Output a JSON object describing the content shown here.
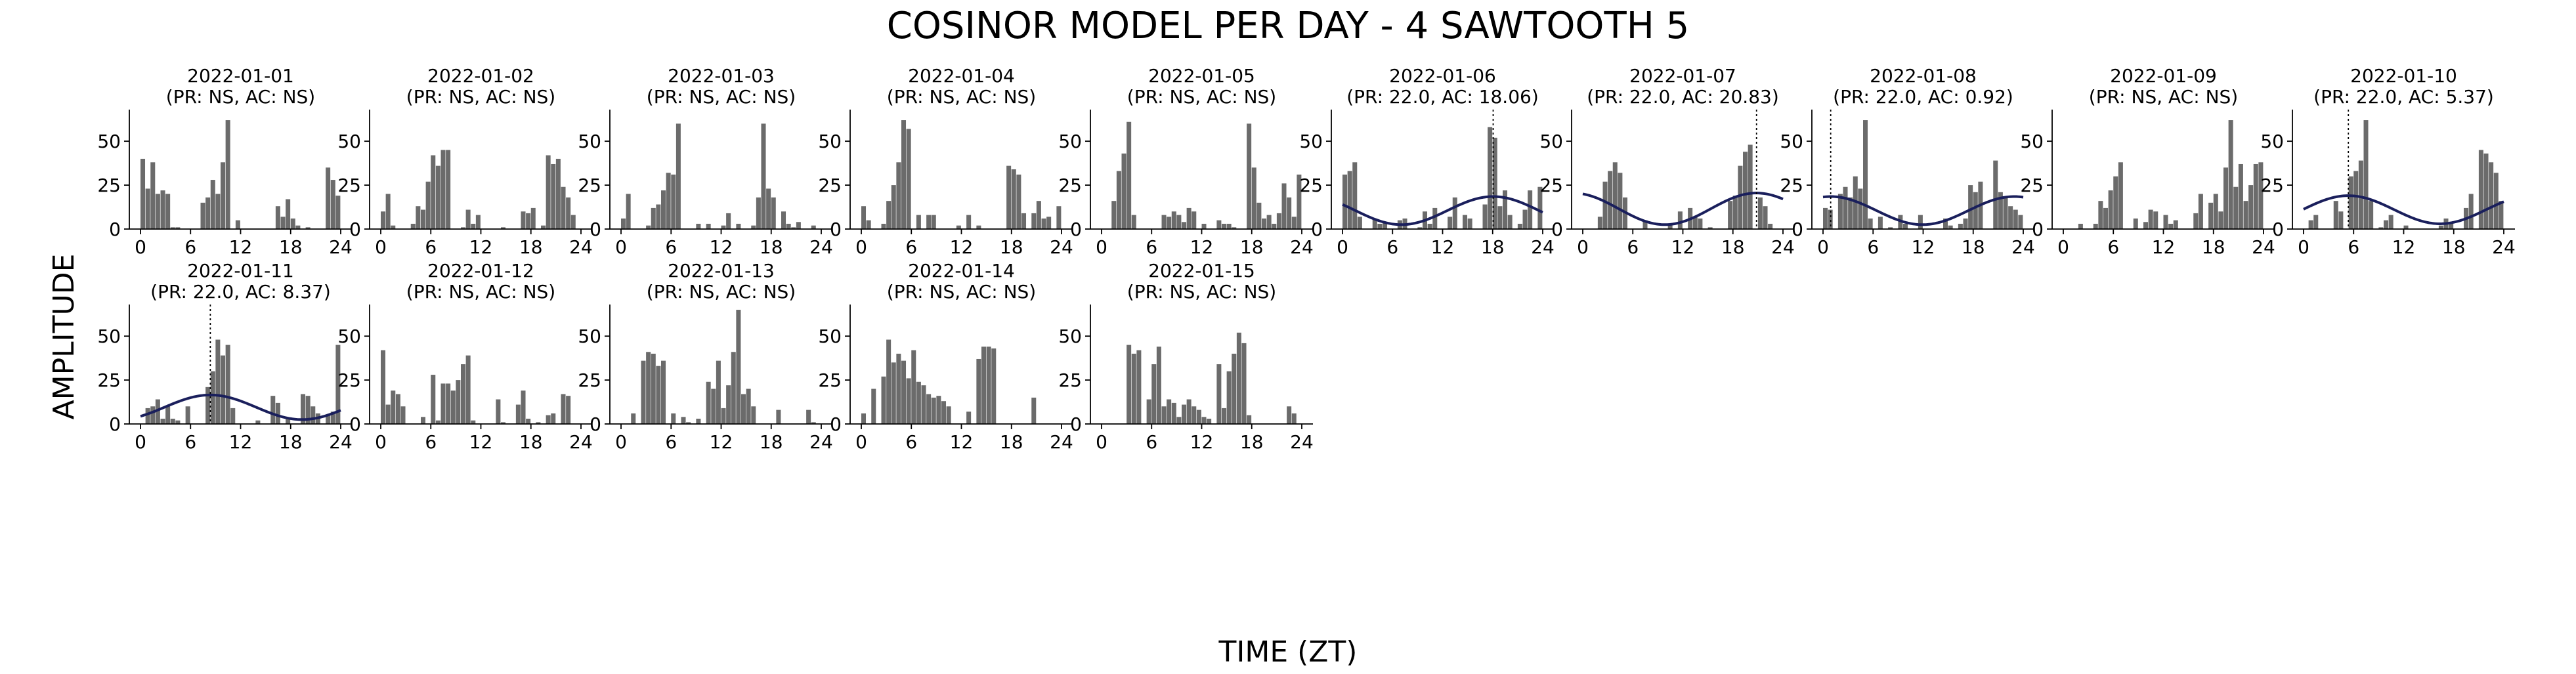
{
  "figure": {
    "title": "COSINOR MODEL PER DAY - 4 SAWTOOTH 5",
    "xlabel": "TIME (ZT)",
    "ylabel": "AMPLITUDE",
    "colors": {
      "bar": "#6b6b6b",
      "fit": "#1a1f5c",
      "axis": "#000000"
    }
  },
  "chart_data": [
    {
      "type": "bar",
      "title": "2022-01-01",
      "subtitle": "(PR: NS, AC: NS)",
      "xlim": [
        0,
        24
      ],
      "ylim": [
        0,
        68
      ],
      "xticks": [
        0,
        6,
        12,
        18,
        24
      ],
      "yticks": [
        0,
        25,
        50
      ],
      "values": [
        40,
        23,
        38,
        20,
        22,
        20,
        1,
        1,
        0,
        0,
        0,
        0,
        15,
        18,
        28,
        20,
        38,
        62,
        0,
        5,
        0,
        0,
        0,
        0,
        0,
        0,
        0,
        13,
        7,
        17,
        6,
        2,
        0,
        1,
        0,
        0,
        0,
        35,
        28,
        19
      ]
    },
    {
      "type": "bar",
      "title": "2022-01-02",
      "subtitle": "(PR: NS, AC: NS)",
      "xlim": [
        0,
        24
      ],
      "ylim": [
        0,
        68
      ],
      "xticks": [
        0,
        6,
        12,
        18,
        24
      ],
      "yticks": [
        0,
        25,
        50
      ],
      "values": [
        10,
        20,
        2,
        0,
        0,
        0,
        3,
        13,
        11,
        27,
        42,
        36,
        45,
        45,
        0,
        0,
        1,
        11,
        3,
        8,
        0,
        0,
        0,
        0,
        1,
        0,
        0,
        0,
        10,
        9,
        12,
        0,
        2,
        42,
        37,
        40,
        24,
        18,
        8,
        0
      ]
    },
    {
      "type": "bar",
      "title": "2022-01-03",
      "subtitle": "(PR: NS, AC: NS)",
      "xlim": [
        0,
        24
      ],
      "ylim": [
        0,
        68
      ],
      "xticks": [
        0,
        6,
        12,
        18,
        24
      ],
      "yticks": [
        0,
        25,
        50
      ],
      "values": [
        6,
        20,
        0,
        0,
        0,
        2,
        12,
        14,
        22,
        32,
        31,
        60,
        0,
        0,
        0,
        3,
        0,
        3,
        0,
        0,
        2,
        9,
        0,
        3,
        0,
        0,
        2,
        18,
        60,
        23,
        18,
        0,
        10,
        3,
        1,
        4,
        0,
        0,
        2,
        0
      ]
    },
    {
      "type": "bar",
      "title": "2022-01-04",
      "subtitle": "(PR: NS, AC: NS)",
      "xlim": [
        0,
        24
      ],
      "ylim": [
        0,
        68
      ],
      "xticks": [
        0,
        6,
        12,
        18,
        24
      ],
      "yticks": [
        0,
        25,
        50
      ],
      "values": [
        13,
        5,
        0,
        0,
        3,
        16,
        25,
        38,
        62,
        57,
        0,
        8,
        0,
        8,
        8,
        0,
        0,
        0,
        0,
        2,
        0,
        8,
        0,
        2,
        0,
        0,
        0,
        0,
        0,
        36,
        34,
        31,
        9,
        0,
        9,
        16,
        6,
        7,
        0,
        13
      ]
    },
    {
      "type": "bar",
      "title": "2022-01-05",
      "subtitle": "(PR: NS, AC: NS)",
      "xlim": [
        0,
        24
      ],
      "ylim": [
        0,
        68
      ],
      "xticks": [
        0,
        6,
        12,
        18,
        24
      ],
      "yticks": [
        0,
        25,
        50
      ],
      "values": [
        0,
        0,
        16,
        33,
        43,
        61,
        8,
        0,
        0,
        0,
        0,
        0,
        8,
        7,
        10,
        8,
        4,
        12,
        10,
        0,
        3,
        0,
        0,
        5,
        3,
        3,
        1,
        0,
        0,
        60,
        35,
        15,
        6,
        8,
        3,
        9,
        26,
        18,
        7,
        31
      ]
    },
    {
      "type": "bar",
      "title": "2022-01-06",
      "subtitle": "(PR: 22.0, AC: 18.06)",
      "xlim": [
        0,
        24
      ],
      "ylim": [
        0,
        68
      ],
      "xticks": [
        0,
        6,
        12,
        18,
        24
      ],
      "yticks": [
        0,
        25,
        50
      ],
      "values": [
        31,
        33,
        38,
        7,
        0,
        0,
        6,
        3,
        4,
        0,
        0,
        5,
        6,
        0,
        0,
        1,
        10,
        3,
        12,
        0,
        0,
        7,
        18,
        0,
        8,
        6,
        0,
        0,
        14,
        58,
        52,
        13,
        22,
        8,
        0,
        3,
        11,
        22,
        0,
        24
      ],
      "fit": {
        "period": 22.0,
        "acrophase": 18.06,
        "mesor": 10.5,
        "amplitude": 8
      }
    },
    {
      "type": "bar",
      "title": "2022-01-07",
      "subtitle": "(PR: 22.0, AC: 20.83)",
      "xlim": [
        0,
        24
      ],
      "ylim": [
        0,
        68
      ],
      "xticks": [
        0,
        6,
        12,
        18,
        24
      ],
      "yticks": [
        0,
        25,
        50
      ],
      "values": [
        0,
        0,
        0,
        7,
        27,
        33,
        38,
        32,
        18,
        0,
        0,
        0,
        5,
        0,
        0,
        0,
        0,
        3,
        0,
        10,
        0,
        12,
        7,
        6,
        0,
        1,
        0,
        0,
        0,
        16,
        19,
        36,
        44,
        48,
        0,
        18,
        13,
        3,
        0,
        0
      ],
      "fit": {
        "period": 22.0,
        "acrophase": 20.83,
        "mesor": 11.5,
        "amplitude": 9
      }
    },
    {
      "type": "bar",
      "title": "2022-01-08",
      "subtitle": "(PR: 22.0, AC: 0.92)",
      "xlim": [
        0,
        24
      ],
      "ylim": [
        0,
        68
      ],
      "xticks": [
        0,
        6,
        12,
        18,
        24
      ],
      "yticks": [
        0,
        25,
        50
      ],
      "values": [
        12,
        11,
        0,
        20,
        24,
        18,
        30,
        23,
        62,
        6,
        0,
        7,
        0,
        1,
        0,
        8,
        3,
        0,
        0,
        8,
        0,
        0,
        0,
        0,
        6,
        2,
        0,
        3,
        6,
        25,
        21,
        27,
        0,
        0,
        39,
        21,
        18,
        13,
        11,
        8
      ],
      "fit": {
        "period": 22.0,
        "acrophase": 0.92,
        "mesor": 10.5,
        "amplitude": 8
      }
    },
    {
      "type": "bar",
      "title": "2022-01-09",
      "subtitle": "(PR: NS, AC: NS)",
      "xlim": [
        0,
        24
      ],
      "ylim": [
        0,
        68
      ],
      "xticks": [
        0,
        6,
        12,
        18,
        24
      ],
      "yticks": [
        0,
        25,
        50
      ],
      "values": [
        0,
        0,
        0,
        3,
        0,
        0,
        3,
        16,
        12,
        22,
        30,
        38,
        0,
        0,
        6,
        0,
        4,
        11,
        10,
        0,
        8,
        3,
        5,
        0,
        0,
        0,
        9,
        20,
        0,
        15,
        20,
        10,
        35,
        62,
        24,
        37,
        16,
        25,
        37,
        38
      ]
    },
    {
      "type": "bar",
      "title": "2022-01-10",
      "subtitle": "(PR: 22.0, AC: 5.37)",
      "xlim": [
        0,
        24
      ],
      "ylim": [
        0,
        68
      ],
      "xticks": [
        0,
        6,
        12,
        18,
        24
      ],
      "yticks": [
        0,
        25,
        50
      ],
      "values": [
        0,
        5,
        8,
        0,
        0,
        0,
        16,
        10,
        0,
        30,
        33,
        39,
        62,
        16,
        0,
        1,
        5,
        8,
        0,
        0,
        2,
        0,
        0,
        0,
        0,
        0,
        0,
        2,
        6,
        4,
        0,
        0,
        12,
        20,
        0,
        45,
        43,
        38,
        32,
        16
      ],
      "fit": {
        "period": 22.0,
        "acrophase": 5.37,
        "mesor": 11,
        "amplitude": 8
      }
    },
    {
      "type": "bar",
      "title": "2022-01-11",
      "subtitle": "(PR: 22.0, AC: 8.37)",
      "xlim": [
        0,
        24
      ],
      "ylim": [
        0,
        68
      ],
      "xticks": [
        0,
        6,
        12,
        18,
        24
      ],
      "yticks": [
        0,
        25,
        50
      ],
      "values": [
        0,
        9,
        10,
        14,
        3,
        10,
        3,
        2,
        0,
        10,
        0,
        0,
        0,
        21,
        30,
        48,
        39,
        45,
        9,
        0,
        0,
        0,
        0,
        2,
        0,
        0,
        16,
        12,
        0,
        3,
        0,
        0,
        17,
        16,
        10,
        6,
        0,
        5,
        7,
        45
      ],
      "fit": {
        "period": 22.0,
        "acrophase": 8.37,
        "mesor": 9.5,
        "amplitude": 7
      }
    },
    {
      "type": "bar",
      "title": "2022-01-12",
      "subtitle": "(PR: NS, AC: NS)",
      "xlim": [
        0,
        24
      ],
      "ylim": [
        0,
        68
      ],
      "xticks": [
        0,
        6,
        12,
        18,
        24
      ],
      "yticks": [
        0,
        25,
        50
      ],
      "values": [
        42,
        11,
        19,
        17,
        10,
        0,
        0,
        0,
        4,
        0,
        28,
        2,
        23,
        23,
        19,
        25,
        34,
        39,
        2,
        0,
        0,
        0,
        0,
        14,
        1,
        0,
        0,
        11,
        19,
        3,
        0,
        1,
        0,
        5,
        6,
        0,
        17,
        16,
        0,
        0
      ]
    },
    {
      "type": "bar",
      "title": "2022-01-13",
      "subtitle": "(PR: NS, AC: NS)",
      "xlim": [
        0,
        24
      ],
      "ylim": [
        0,
        68
      ],
      "xticks": [
        0,
        6,
        12,
        18,
        24
      ],
      "yticks": [
        0,
        25,
        50
      ],
      "values": [
        0,
        0,
        6,
        0,
        36,
        41,
        40,
        33,
        36,
        0,
        6,
        0,
        4,
        1,
        0,
        3,
        0,
        24,
        20,
        36,
        9,
        22,
        41,
        65,
        17,
        20,
        10,
        0,
        0,
        0,
        0,
        8,
        0,
        0,
        0,
        0,
        0,
        8,
        1,
        0
      ]
    },
    {
      "type": "bar",
      "title": "2022-01-14",
      "subtitle": "(PR: NS, AC: NS)",
      "xlim": [
        0,
        24
      ],
      "ylim": [
        0,
        68
      ],
      "xticks": [
        0,
        6,
        12,
        18,
        24
      ],
      "yticks": [
        0,
        25,
        50
      ],
      "values": [
        6,
        0,
        20,
        0,
        27,
        48,
        35,
        40,
        36,
        26,
        42,
        24,
        22,
        17,
        15,
        16,
        13,
        10,
        0,
        0,
        0,
        7,
        0,
        37,
        44,
        44,
        43,
        0,
        0,
        0,
        0,
        0,
        0,
        0,
        15,
        0,
        0,
        0,
        0,
        0
      ]
    },
    {
      "type": "bar",
      "title": "2022-01-15",
      "subtitle": "(PR: NS, AC: NS)",
      "xlim": [
        0,
        24
      ],
      "ylim": [
        0,
        68
      ],
      "xticks": [
        0,
        6,
        12,
        18,
        24
      ],
      "yticks": [
        0,
        25,
        50
      ],
      "values": [
        0,
        0,
        0,
        0,
        0,
        45,
        40,
        42,
        0,
        14,
        34,
        44,
        10,
        14,
        12,
        4,
        11,
        14,
        10,
        8,
        4,
        3,
        0,
        34,
        9,
        30,
        40,
        52,
        46,
        5,
        0,
        0,
        0,
        0,
        0,
        0,
        0,
        10,
        6,
        0
      ]
    }
  ]
}
